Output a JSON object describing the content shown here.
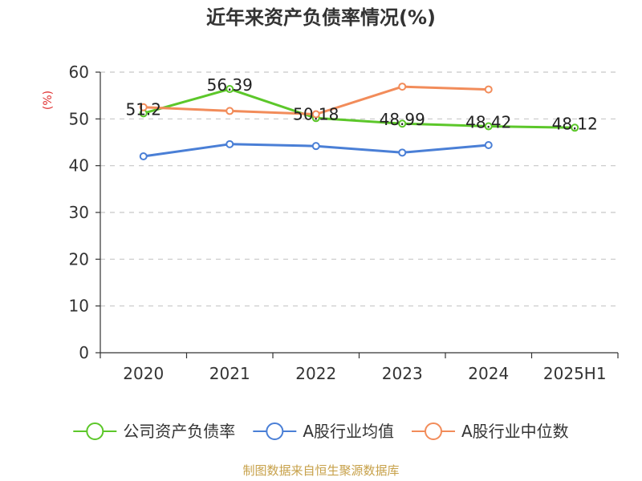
{
  "chart_data": {
    "type": "line",
    "title": "近年来资产负债率情况(%)",
    "unit_label": "(%)",
    "categories": [
      "2020",
      "2021",
      "2022",
      "2023",
      "2024",
      "2025H1"
    ],
    "ylim": [
      0,
      60
    ],
    "yticks": [
      0,
      10,
      20,
      30,
      40,
      50,
      60
    ],
    "grid": true,
    "legend_position": "bottom",
    "series": [
      {
        "name": "公司资产负债率",
        "color": "#5cc72a",
        "values": [
          51.2,
          56.39,
          50.18,
          48.99,
          48.42,
          48.12
        ],
        "labels": [
          "51.2",
          "56.39",
          "50.18",
          "48.99",
          "48.42",
          "48.12"
        ]
      },
      {
        "name": "A股行业均值",
        "color": "#4a7fd6",
        "values": [
          42.0,
          44.6,
          44.2,
          42.8,
          44.4,
          null
        ]
      },
      {
        "name": "A股行业中位数",
        "color": "#f28c5a",
        "values": [
          52.5,
          51.7,
          51.0,
          56.9,
          56.3,
          null
        ]
      }
    ],
    "source": "制图数据来自恒生聚源数据库"
  }
}
